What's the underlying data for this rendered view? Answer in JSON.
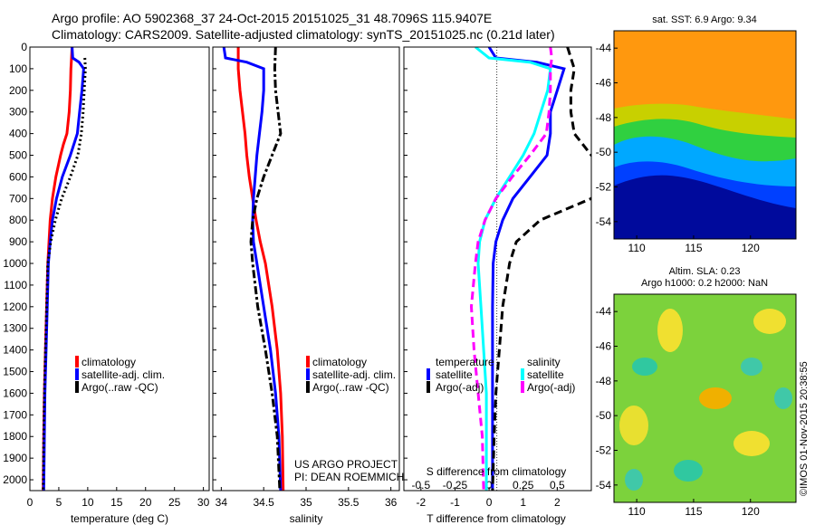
{
  "title_line1": "Argo profile: AO 5902368_37 24-Oct-2015 20151025_31 48.7096S 115.9407E",
  "title_line2": "Climatology: CARS2009. Satellite-adjusted climatology: synTS_20151025.nc (0.21d later)",
  "credits": {
    "project": "US ARGO PROJECT",
    "pi": "PI: DEAN ROEMMICH"
  },
  "watermark": "©IMOS 01-Nov-2015 20:38:55",
  "colors": {
    "climatology": "#ff0000",
    "satellite": "#0000ff",
    "argo": "#000000",
    "sat_salinity": "#00ffff",
    "argo_salinity": "#ff00ff"
  },
  "chart_data": [
    {
      "type": "line",
      "xlabel": "temperature (deg C)",
      "xlim": [
        0,
        31
      ],
      "xticks": [
        "0",
        "5",
        "10",
        "15",
        "20",
        "25",
        "30"
      ],
      "ylim": [
        0,
        2050
      ],
      "yticks": [
        "0",
        "100",
        "200",
        "300",
        "400",
        "500",
        "600",
        "700",
        "800",
        "900",
        "1000",
        "1100",
        "1200",
        "1300",
        "1400",
        "1500",
        "1600",
        "1700",
        "1800",
        "1900",
        "2000"
      ],
      "legend": [
        "climatology",
        "satellite-adj. clim.",
        "Argo(..raw -QC)"
      ],
      "series": [
        {
          "name": "climatology",
          "depth": [
            0,
            50,
            100,
            200,
            300,
            400,
            450,
            500,
            600,
            700,
            800,
            900,
            1000,
            1200,
            1400,
            1600,
            1800,
            2050
          ],
          "values": [
            7.3,
            7.2,
            7.1,
            7.0,
            6.8,
            6.4,
            5.8,
            5.3,
            4.5,
            3.9,
            3.5,
            3.3,
            3.1,
            2.9,
            2.7,
            2.5,
            2.4,
            2.3
          ]
        },
        {
          "name": "satellite-adj. clim.",
          "depth": [
            0,
            50,
            70,
            100,
            200,
            300,
            400,
            500,
            600,
            700,
            800,
            900,
            1000,
            1200,
            1400,
            1600,
            1800,
            2050
          ],
          "values": [
            7.3,
            7.4,
            8.5,
            9.3,
            9.0,
            8.6,
            8.2,
            7.0,
            5.6,
            4.6,
            3.9,
            3.5,
            3.2,
            3.0,
            2.8,
            2.6,
            2.5,
            2.4
          ]
        },
        {
          "name": "Argo(..raw -QC)",
          "depth": [
            50,
            100,
            200,
            300,
            400,
            500,
            600,
            700,
            800,
            900,
            1000,
            1200,
            1400,
            1600,
            1800,
            2050
          ],
          "values": [
            9.5,
            9.6,
            9.4,
            9.2,
            8.9,
            8.3,
            7.0,
            5.5,
            4.4,
            3.6,
            3.1,
            2.9,
            2.7,
            2.5,
            2.4,
            2.3
          ]
        }
      ]
    },
    {
      "type": "line",
      "xlabel": "salinity",
      "xlim": [
        33.9,
        36.1
      ],
      "xticks": [
        "34",
        "34.5",
        "35",
        "35.5",
        "36"
      ],
      "ylim": [
        0,
        2050
      ],
      "legend": [
        "climatology",
        "satellite-adj. clim.",
        "Argo(..raw -QC)"
      ],
      "series": [
        {
          "name": "climatology",
          "depth": [
            0,
            100,
            200,
            300,
            400,
            500,
            600,
            700,
            800,
            900,
            1000,
            1200,
            1400,
            1600,
            1800,
            2050
          ],
          "values": [
            34.2,
            34.2,
            34.22,
            34.25,
            34.28,
            34.3,
            34.33,
            34.37,
            34.41,
            34.46,
            34.52,
            34.6,
            34.66,
            34.7,
            34.72,
            34.73
          ]
        },
        {
          "name": "satellite-adj. clim.",
          "depth": [
            0,
            50,
            70,
            100,
            200,
            300,
            400,
            500,
            600,
            700,
            800,
            900,
            1000,
            1200,
            1400,
            1600,
            1800,
            2050
          ],
          "values": [
            34.03,
            34.05,
            34.3,
            34.5,
            34.5,
            34.48,
            34.45,
            34.42,
            34.4,
            34.38,
            34.37,
            34.38,
            34.42,
            34.5,
            34.58,
            34.64,
            34.68,
            34.7
          ]
        },
        {
          "name": "Argo(..raw -QC)",
          "depth": [
            0,
            100,
            200,
            300,
            400,
            500,
            600,
            700,
            800,
            900,
            1000,
            1200,
            1400,
            1600,
            1800,
            2050
          ],
          "values": [
            34.64,
            34.63,
            34.64,
            34.67,
            34.7,
            34.6,
            34.5,
            34.42,
            34.37,
            34.35,
            34.37,
            34.43,
            34.52,
            34.6,
            34.66,
            34.69
          ]
        }
      ]
    },
    {
      "type": "line",
      "xlabel": "T difference from climatology",
      "xlabel2": "S difference from climatology",
      "xlim": [
        -2.5,
        3.0
      ],
      "xticks": [
        "-2",
        "-1",
        "0",
        "1",
        "2"
      ],
      "xticks_s": [
        "-0.5",
        "-0.25",
        "0",
        "0.25",
        "0.5"
      ],
      "ylim": [
        0,
        2050
      ],
      "legend_headers": [
        "temperature",
        "salinity"
      ],
      "legend": [
        "satellite",
        "Argo(-adj)",
        "satellite",
        "Argo(-adj)"
      ],
      "series": [
        {
          "name": "temperature satellite",
          "depth": [
            0,
            50,
            70,
            100,
            200,
            300,
            400,
            500,
            600,
            700,
            800,
            900,
            1000,
            1200,
            1400,
            1600,
            1800,
            2050
          ],
          "values": [
            0.0,
            0.2,
            1.4,
            2.2,
            2.0,
            1.8,
            1.8,
            1.7,
            1.2,
            0.7,
            0.4,
            0.2,
            0.12,
            0.1,
            0.1,
            0.1,
            0.1,
            0.1
          ]
        },
        {
          "name": "temperature Argo(-adj)",
          "depth": [
            0,
            50,
            100,
            200,
            300,
            400,
            500,
            600,
            700,
            800,
            900,
            1000,
            1200,
            1400,
            1600,
            1800,
            2050
          ],
          "values": [
            2.3,
            2.4,
            2.5,
            2.4,
            2.4,
            2.5,
            3.0,
            3.5,
            3.0,
            1.5,
            0.8,
            0.6,
            0.4,
            0.3,
            0.2,
            0.15,
            0.1
          ]
        },
        {
          "name": "salinity satellite",
          "depth": [
            0,
            50,
            70,
            100,
            200,
            300,
            400,
            500,
            600,
            700,
            800,
            900,
            1000,
            1200,
            1400,
            1600,
            1800,
            2050
          ],
          "values": [
            -0.1,
            0.0,
            0.3,
            0.45,
            0.43,
            0.38,
            0.33,
            0.25,
            0.15,
            0.05,
            -0.03,
            -0.07,
            -0.08,
            -0.06,
            -0.04,
            -0.02,
            -0.02,
            -0.02
          ]
        },
        {
          "name": "salinity Argo(-adj)",
          "depth": [
            0,
            50,
            100,
            200,
            300,
            400,
            500,
            600,
            700,
            800,
            900,
            1000,
            1200,
            1400,
            1600,
            1800,
            2050
          ],
          "values": [
            0.45,
            0.46,
            0.45,
            0.45,
            0.44,
            0.42,
            0.3,
            0.17,
            0.05,
            -0.03,
            -0.08,
            -0.1,
            -0.13,
            -0.11,
            -0.08,
            -0.05,
            -0.04
          ]
        }
      ]
    },
    {
      "type": "heatmap",
      "title": "sat. SST: 6.9  Argo: 9.34",
      "xticks": [
        "110",
        "115",
        "120"
      ],
      "yticks": [
        "-44",
        "-46",
        "-48",
        "-50",
        "-52",
        "-54"
      ],
      "xlim": [
        108,
        124
      ],
      "ylim": [
        -55,
        -43
      ]
    },
    {
      "type": "heatmap",
      "title": "Altim. SLA: 0.23",
      "subtitle": "Argo h1000: 0.2 h2000: NaN",
      "xticks": [
        "110",
        "115",
        "120"
      ],
      "yticks": [
        "-44",
        "-46",
        "-48",
        "-50",
        "-52",
        "-54"
      ],
      "xlim": [
        108,
        124
      ],
      "ylim": [
        -55,
        -43
      ]
    }
  ]
}
